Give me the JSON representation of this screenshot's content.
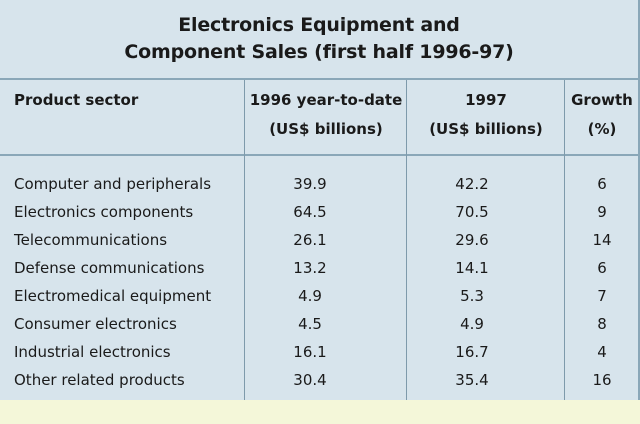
{
  "title_line1": "Electronics Equipment and",
  "title_line2": "Component Sales (first half 1996-97)",
  "columns": {
    "sector": "Product sector",
    "y96_line1": "1996 year-to-date",
    "y96_line2": "(US$ billions)",
    "y97_line1": "1997",
    "y97_line2": "(US$ billions)",
    "growth_line1": "Growth",
    "growth_line2": "(%)"
  },
  "rows": [
    {
      "sector": "Computer and peripherals",
      "y96": "39.9",
      "y97": "42.2",
      "growth": "6"
    },
    {
      "sector": "Electronics components",
      "y96": "64.5",
      "y97": "70.5",
      "growth": "9"
    },
    {
      "sector": "Telecommunications",
      "y96": "26.1",
      "y97": "29.6",
      "growth": "14"
    },
    {
      "sector": "Defense communications",
      "y96": "13.2",
      "y97": "14.1",
      "growth": "6"
    },
    {
      "sector": "Electromedical equipment",
      "y96": "4.9",
      "y97": "5.3",
      "growth": "7"
    },
    {
      "sector": "Consumer electronics",
      "y96": "4.5",
      "y97": "4.9",
      "growth": "8"
    },
    {
      "sector": "Industrial electronics",
      "y96": "16.1",
      "y97": "16.7",
      "growth": "4"
    },
    {
      "sector": "Other related products",
      "y96": "30.4",
      "y97": "35.4",
      "growth": "16"
    }
  ],
  "colors": {
    "table_background": "#d7e4ec",
    "page_background": "#f4f7d9",
    "rule": "#8aa7b8"
  },
  "chart_data": {
    "type": "table",
    "title": "Electronics Equipment and Component Sales (first half 1996-97)",
    "columns": [
      "Product sector",
      "1996 year-to-date (US$ billions)",
      "1997 (US$ billions)",
      "Growth (%)"
    ],
    "categories": [
      "Computer and peripherals",
      "Electronics components",
      "Telecommunications",
      "Defense communications",
      "Electromedical equipment",
      "Consumer electronics",
      "Industrial electronics",
      "Other related products"
    ],
    "series": [
      {
        "name": "1996 year-to-date (US$ billions)",
        "values": [
          39.9,
          64.5,
          26.1,
          13.2,
          4.9,
          4.5,
          16.1,
          30.4
        ]
      },
      {
        "name": "1997 (US$ billions)",
        "values": [
          42.2,
          70.5,
          29.6,
          14.1,
          5.3,
          4.9,
          16.7,
          35.4
        ]
      },
      {
        "name": "Growth (%)",
        "values": [
          6,
          9,
          14,
          6,
          7,
          8,
          4,
          16
        ]
      }
    ]
  }
}
